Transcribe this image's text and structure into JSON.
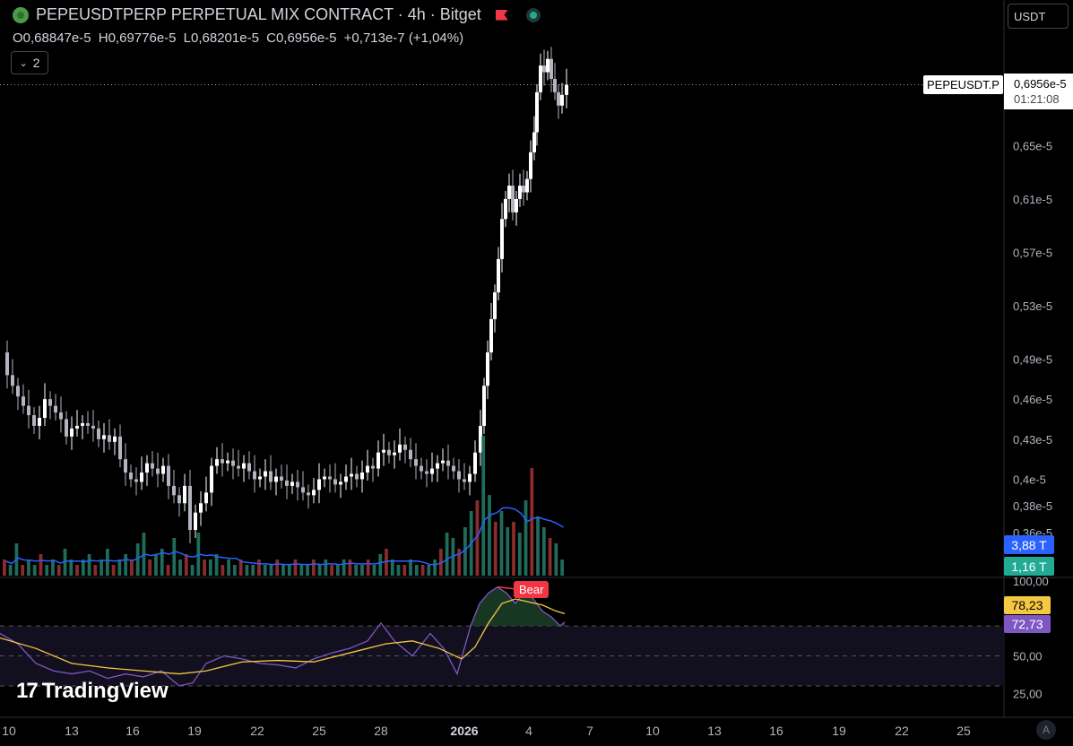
{
  "header": {
    "title": "PEPEUSDTPERP PERPETUAL MIX CONTRACT · 4h · Bitget",
    "ohlc": {
      "o_label": "O",
      "o": "0,68847e-5",
      "h_label": "H",
      "h": "0,69776e-5",
      "l_label": "L",
      "l": "0,68201e-5",
      "c_label": "C",
      "c": "0,6956e-5",
      "change": "+0,713e-7 (+1,04%)"
    },
    "collapsed_count": "2",
    "currency": "USDT"
  },
  "price_label": {
    "symbol": "PEPEUSDT.P",
    "price": "0,6956e-5",
    "countdown": "01:21:08"
  },
  "volume_labels": {
    "ma": "3,88 T",
    "volume": "1,16 T"
  },
  "rsi_labels": {
    "ma": "78,23",
    "rsi": "72,73",
    "divergence": "Bear"
  },
  "branding": {
    "logo": "TradingView",
    "auto_button": "A"
  },
  "colors": {
    "up": "#ffffff",
    "down": "#b2b5be",
    "vol_up": "#1f6b5c",
    "vol_down": "#8c2b2b",
    "vol_ma": "#2962ff",
    "rsi": "#7e57c2",
    "rsi_ma": "#f5c842",
    "bear": "#f23645",
    "ma_tag": "#2962ff",
    "vol_tag": "#22ab94",
    "rsi_ma_tag": "#f5c842",
    "rsi_tag": "#7e57c2"
  },
  "chart_data": [
    {
      "type": "candlestick",
      "price_axis_ticks": [
        "0,65e-5",
        "0,61e-5",
        "0,57e-5",
        "0,53e-5",
        "0,49e-5",
        "0,46e-5",
        "0,43e-5",
        "0,4e-5",
        "0,38e-5",
        "0,36e-5"
      ],
      "price_axis_tick_values": [
        0.65,
        0.61,
        0.57,
        0.53,
        0.49,
        0.46,
        0.43,
        0.4,
        0.38,
        0.36
      ],
      "last_price": 0.6956,
      "time_axis": [
        "10",
        "13",
        "16",
        "19",
        "22",
        "25",
        "28",
        "2026",
        "4",
        "7",
        "10",
        "13",
        "16",
        "19",
        "22",
        "25"
      ],
      "close_path": [
        [
          0,
          0.495
        ],
        [
          6,
          0.478
        ],
        [
          12,
          0.47
        ],
        [
          18,
          0.462
        ],
        [
          24,
          0.455
        ],
        [
          30,
          0.448
        ],
        [
          36,
          0.44
        ],
        [
          42,
          0.446
        ],
        [
          48,
          0.46
        ],
        [
          54,
          0.455
        ],
        [
          60,
          0.45
        ],
        [
          66,
          0.445
        ],
        [
          72,
          0.432
        ],
        [
          78,
          0.438
        ],
        [
          84,
          0.44
        ],
        [
          90,
          0.442
        ],
        [
          96,
          0.44
        ],
        [
          102,
          0.438
        ],
        [
          108,
          0.43
        ],
        [
          114,
          0.433
        ],
        [
          120,
          0.428
        ],
        [
          126,
          0.432
        ],
        [
          132,
          0.415
        ],
        [
          138,
          0.405
        ],
        [
          144,
          0.4
        ],
        [
          150,
          0.398
        ],
        [
          156,
          0.405
        ],
        [
          162,
          0.412
        ],
        [
          168,
          0.408
        ],
        [
          174,
          0.404
        ],
        [
          180,
          0.41
        ],
        [
          186,
          0.395
        ],
        [
          192,
          0.388
        ],
        [
          198,
          0.382
        ],
        [
          204,
          0.395
        ],
        [
          210,
          0.362
        ],
        [
          216,
          0.375
        ],
        [
          222,
          0.382
        ],
        [
          228,
          0.39
        ],
        [
          234,
          0.41
        ],
        [
          240,
          0.415
        ],
        [
          246,
          0.412
        ],
        [
          252,
          0.414
        ],
        [
          258,
          0.41
        ],
        [
          264,
          0.408
        ],
        [
          270,
          0.412
        ],
        [
          276,
          0.406
        ],
        [
          282,
          0.4
        ],
        [
          288,
          0.402
        ],
        [
          294,
          0.406
        ],
        [
          300,
          0.398
        ],
        [
          306,
          0.402
        ],
        [
          312,
          0.399
        ],
        [
          318,
          0.395
        ],
        [
          324,
          0.398
        ],
        [
          330,
          0.394
        ],
        [
          336,
          0.39
        ],
        [
          342,
          0.388
        ],
        [
          348,
          0.392
        ],
        [
          354,
          0.4
        ],
        [
          360,
          0.402
        ],
        [
          366,
          0.4
        ],
        [
          372,
          0.396
        ],
        [
          378,
          0.398
        ],
        [
          384,
          0.402
        ],
        [
          390,
          0.404
        ],
        [
          396,
          0.4
        ],
        [
          402,
          0.405
        ],
        [
          408,
          0.41
        ],
        [
          414,
          0.408
        ],
        [
          420,
          0.42
        ],
        [
          426,
          0.422
        ],
        [
          432,
          0.418
        ],
        [
          438,
          0.42
        ],
        [
          444,
          0.426
        ],
        [
          450,
          0.422
        ],
        [
          456,
          0.415
        ],
        [
          462,
          0.41
        ],
        [
          468,
          0.406
        ],
        [
          474,
          0.404
        ],
        [
          480,
          0.408
        ],
        [
          486,
          0.412
        ],
        [
          492,
          0.414
        ],
        [
          498,
          0.41
        ],
        [
          504,
          0.406
        ],
        [
          510,
          0.4
        ],
        [
          516,
          0.398
        ],
        [
          522,
          0.404
        ],
        [
          528,
          0.42
        ],
        [
          534,
          0.44
        ],
        [
          538,
          0.47
        ],
        [
          542,
          0.495
        ],
        [
          546,
          0.52
        ],
        [
          550,
          0.54
        ],
        [
          554,
          0.565
        ],
        [
          558,
          0.595
        ],
        [
          562,
          0.61
        ],
        [
          566,
          0.62
        ],
        [
          570,
          0.6
        ],
        [
          574,
          0.61
        ],
        [
          578,
          0.62
        ],
        [
          582,
          0.615
        ],
        [
          586,
          0.625
        ],
        [
          590,
          0.645
        ],
        [
          594,
          0.66
        ],
        [
          597,
          0.69
        ],
        [
          601,
          0.71
        ],
        [
          605,
          0.705
        ],
        [
          609,
          0.715
        ],
        [
          613,
          0.7
        ],
        [
          617,
          0.69
        ],
        [
          621,
          0.68
        ],
        [
          625,
          0.688
        ],
        [
          630,
          0.6956
        ]
      ]
    },
    {
      "type": "bar",
      "title": "Volume",
      "values_relative": [
        0.3,
        0.2,
        0.6,
        0.2,
        0.3,
        0.2,
        0.4,
        0.2,
        0.3,
        0.2,
        0.5,
        0.3,
        0.2,
        0.3,
        0.4,
        0.2,
        0.3,
        0.5,
        0.2,
        0.3,
        0.4,
        0.3,
        0.6,
        0.8,
        0.3,
        0.4,
        0.5,
        0.2,
        0.7,
        0.3,
        0.4,
        0.2,
        0.8,
        0.3,
        0.3,
        0.4,
        0.2,
        0.3,
        0.2,
        0.3,
        0.2,
        0.2,
        0.3,
        0.2,
        0.2,
        0.3,
        0.2,
        0.2,
        0.3,
        0.2,
        0.2,
        0.3,
        0.2,
        0.3,
        0.2,
        0.2,
        0.3,
        0.3,
        0.2,
        0.2,
        0.3,
        0.2,
        0.4,
        0.5,
        0.3,
        0.2,
        0.2,
        0.3,
        0.2,
        0.2,
        0.2,
        0.3,
        0.5,
        0.8,
        0.7,
        0.5,
        0.9,
        1.2,
        1.4,
        2.6,
        1.5,
        1.0,
        1.2,
        0.9,
        1.0,
        0.8,
        1.4,
        2.0,
        1.1,
        0.9,
        0.7,
        0.6,
        0.3
      ],
      "ma_label": "3,88 T",
      "last_label": "1,16 T"
    },
    {
      "type": "line",
      "title": "RSI",
      "y_ticks": [
        "100,00",
        "50,00",
        "25,00"
      ],
      "y_tick_values": [
        100,
        50,
        25
      ],
      "band": [
        30,
        70
      ],
      "rsi": [
        [
          0,
          65
        ],
        [
          20,
          58
        ],
        [
          40,
          45
        ],
        [
          60,
          40
        ],
        [
          80,
          38
        ],
        [
          100,
          40
        ],
        [
          120,
          35
        ],
        [
          140,
          38
        ],
        [
          160,
          36
        ],
        [
          180,
          40
        ],
        [
          200,
          30
        ],
        [
          215,
          32
        ],
        [
          230,
          45
        ],
        [
          250,
          50
        ],
        [
          270,
          48
        ],
        [
          290,
          45
        ],
        [
          310,
          44
        ],
        [
          330,
          42
        ],
        [
          350,
          48
        ],
        [
          370,
          52
        ],
        [
          390,
          55
        ],
        [
          410,
          60
        ],
        [
          425,
          72
        ],
        [
          440,
          60
        ],
        [
          460,
          50
        ],
        [
          480,
          65
        ],
        [
          495,
          55
        ],
        [
          510,
          38
        ],
        [
          525,
          70
        ],
        [
          535,
          85
        ],
        [
          545,
          92
        ],
        [
          555,
          96
        ],
        [
          565,
          92
        ],
        [
          575,
          85
        ],
        [
          585,
          93
        ],
        [
          595,
          88
        ],
        [
          605,
          80
        ],
        [
          615,
          76
        ],
        [
          625,
          70
        ],
        [
          630,
          72.73
        ]
      ],
      "rsi_ma": [
        [
          0,
          62
        ],
        [
          40,
          55
        ],
        [
          80,
          45
        ],
        [
          120,
          42
        ],
        [
          160,
          40
        ],
        [
          200,
          38
        ],
        [
          230,
          40
        ],
        [
          270,
          46
        ],
        [
          310,
          47
        ],
        [
          350,
          46
        ],
        [
          390,
          52
        ],
        [
          430,
          58
        ],
        [
          460,
          60
        ],
        [
          490,
          55
        ],
        [
          515,
          48
        ],
        [
          530,
          56
        ],
        [
          545,
          72
        ],
        [
          560,
          85
        ],
        [
          575,
          88
        ],
        [
          590,
          86
        ],
        [
          605,
          84
        ],
        [
          620,
          80
        ],
        [
          630,
          78.23
        ]
      ]
    }
  ]
}
